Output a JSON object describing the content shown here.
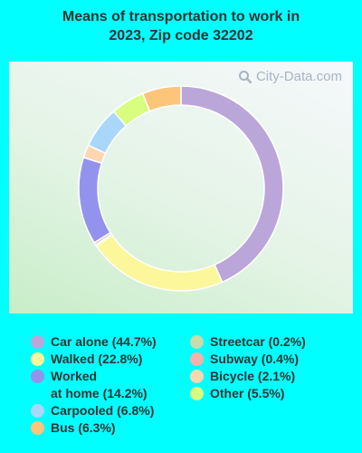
{
  "title": {
    "line1": "Means of transportation to work in",
    "line2": "2023, Zip code 32202"
  },
  "watermark": "City-Data.com",
  "chart_data": {
    "type": "pie",
    "title": "Means of transportation to work in 2023, Zip code 32202",
    "donut": true,
    "categories": [
      "Car alone",
      "Walked",
      "Worked at home",
      "Carpooled",
      "Bus",
      "Streetcar",
      "Subway",
      "Bicycle",
      "Other"
    ],
    "values": [
      44.7,
      22.8,
      14.2,
      6.8,
      6.3,
      0.2,
      0.4,
      2.1,
      5.5
    ],
    "colors": [
      "#bba6da",
      "#fcf79a",
      "#9393ee",
      "#a9d7fa",
      "#fcc57a",
      "#c8dbab",
      "#f3b3aa",
      "#fed6b0",
      "#d9fd7e"
    ],
    "drawing_order": [
      "Car alone",
      "Walked",
      "Streetcar",
      "Subway",
      "Worked at home",
      "Bicycle",
      "Carpooled",
      "Other",
      "Bus"
    ],
    "legend_position": "bottom"
  },
  "legend": {
    "left": [
      {
        "label": "Car alone (44.7%)",
        "color": "#bba6da"
      },
      {
        "label": "Walked (22.8%)",
        "color": "#fcf79a"
      },
      {
        "label": "Worked",
        "label2": "at home (14.2%)",
        "color": "#9393ee"
      },
      {
        "label": "Carpooled (6.8%)",
        "color": "#a9d7fa"
      },
      {
        "label": "Bus (6.3%)",
        "color": "#fcc57a"
      }
    ],
    "right": [
      {
        "label": "Streetcar (0.2%)",
        "color": "#c8dbab"
      },
      {
        "label": "Subway (0.4%)",
        "color": "#f3b3aa"
      },
      {
        "label": "Bicycle (2.1%)",
        "color": "#fed6b0"
      },
      {
        "label": "Other (5.5%)",
        "color": "#d9fd7e"
      }
    ]
  }
}
